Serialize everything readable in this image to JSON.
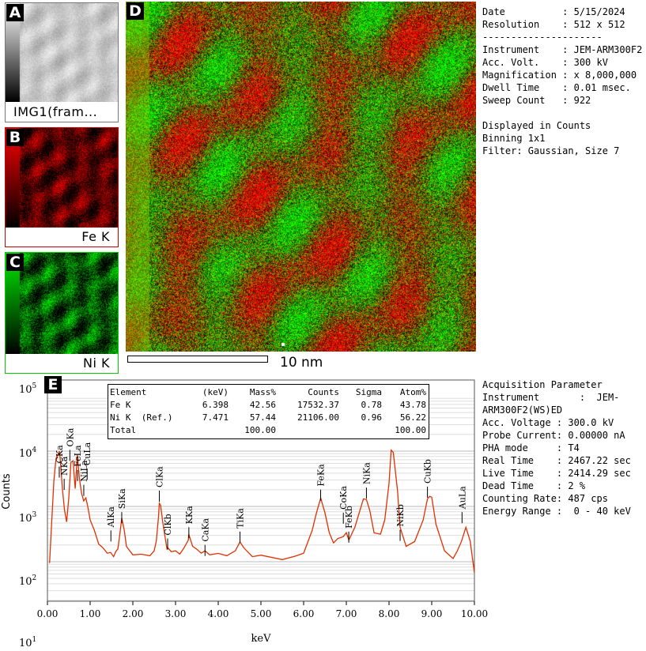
{
  "panels": {
    "A": {
      "letter": "A",
      "caption": "IMG1(fram..."
    },
    "B": {
      "letter": "B",
      "caption": "Fe K"
    },
    "C": {
      "letter": "C",
      "caption": "Ni K"
    },
    "D": {
      "letter": "D",
      "scalebar_label": "10 nm"
    },
    "E": {
      "letter": "E"
    }
  },
  "colors": {
    "fe": "#ff0000",
    "ni": "#00dd00",
    "caption_border_b": "#cc0000",
    "caption_border_c": "#00cc00",
    "spectrum": "#e03000"
  },
  "info_top": [
    "Date          : 5/15/2024",
    "Resolution    : 512 x 512",
    "---------------------",
    "Instrument    : JEM-ARM300F2",
    "Acc. Volt.    : 300 kV",
    "Magnification : x 8,000,000",
    "Dwell Time    : 0.01 msec.",
    "Sweep Count   : 922",
    "",
    "Displayed in Counts",
    "Binning 1x1",
    "Filter: Gaussian, Size 7"
  ],
  "info_bottom": [
    "Acquisition Parameter",
    "Instrument       :  JEM-",
    "ARM300F2(WS)ED",
    "Acc. Voltage : 300.0 kV",
    "Probe Current: 0.00000 nA",
    "PHA mode     : T4",
    "Real Time    : 2467.22 sec",
    "Live Time    : 2414.29 sec",
    "Dead Time    : 2 %",
    "Counting Rate: 487 cps",
    "Energy Range :  0 - 40 keV"
  ],
  "table": {
    "headers": [
      "Element",
      "(keV)",
      "Mass%",
      "Counts",
      "Sigma",
      "Atom%"
    ],
    "rows": [
      [
        "Fe K",
        "6.398",
        "42.56",
        "17532.37",
        "0.78",
        "43.78"
      ],
      [
        "Ni K  (Ref.)",
        "7.471",
        "57.44",
        "21106.00",
        "0.96",
        "56.22"
      ],
      [
        "Total",
        "",
        "100.00",
        "",
        "",
        "100.00"
      ]
    ]
  },
  "chart_data": {
    "type": "line",
    "xlabel": "keV",
    "ylabel": "Counts",
    "xlim": [
      0,
      10
    ],
    "ylim": [
      10,
      100000
    ],
    "yscale": "log",
    "xticks": [
      "0.00",
      "1.00",
      "2.00",
      "3.00",
      "4.00",
      "5.00",
      "6.00",
      "7.00",
      "8.00",
      "9.00",
      "10.00"
    ],
    "ytick_bases": [
      "10",
      "10",
      "10",
      "10",
      "10"
    ],
    "ytick_exps": [
      "5",
      "4",
      "3",
      "2",
      "1"
    ],
    "series": [
      {
        "x": [
          0.05,
          0.1,
          0.15,
          0.2,
          0.25,
          0.28,
          0.3,
          0.35,
          0.4,
          0.45,
          0.5,
          0.55,
          0.6,
          0.65,
          0.7,
          0.75,
          0.8,
          0.85,
          0.9,
          0.95,
          1.0,
          1.1,
          1.2,
          1.3,
          1.4,
          1.48,
          1.55,
          1.6,
          1.65,
          1.7,
          1.74,
          1.8,
          1.85,
          1.9,
          2.0,
          2.2,
          2.4,
          2.5,
          2.55,
          2.6,
          2.62,
          2.65,
          2.7,
          2.75,
          2.8,
          2.82,
          2.9,
          3.0,
          3.1,
          3.2,
          3.3,
          3.31,
          3.4,
          3.5,
          3.6,
          3.69,
          3.8,
          4.0,
          4.2,
          4.4,
          4.51,
          4.6,
          4.8,
          5.0,
          5.5,
          5.8,
          6.0,
          6.2,
          6.3,
          6.4,
          6.5,
          6.6,
          6.7,
          6.8,
          6.93,
          7.0,
          7.06,
          7.2,
          7.3,
          7.4,
          7.47,
          7.55,
          7.65,
          7.8,
          7.9,
          8.0,
          8.05,
          8.1,
          8.2,
          8.26,
          8.4,
          8.6,
          8.8,
          8.9,
          8.95,
          9.0,
          9.1,
          9.3,
          9.5,
          9.6,
          9.7,
          9.8,
          9.9,
          10.0
        ],
        "y": [
          100,
          500,
          3000,
          7000,
          9000,
          9500,
          7500,
          2000,
          900,
          500,
          1500,
          6000,
          7000,
          2000,
          9000,
          3000,
          1800,
          1200,
          1500,
          900,
          600,
          350,
          220,
          170,
          150,
          140,
          130,
          145,
          180,
          320,
          650,
          350,
          200,
          160,
          140,
          130,
          135,
          150,
          250,
          600,
          1200,
          1000,
          550,
          280,
          180,
          170,
          160,
          150,
          145,
          170,
          260,
          300,
          200,
          160,
          150,
          150,
          140,
          135,
          135,
          150,
          240,
          170,
          130,
          125,
          115,
          120,
          150,
          350,
          800,
          1350,
          800,
          320,
          230,
          250,
          300,
          320,
          260,
          400,
          800,
          1300,
          1400,
          800,
          350,
          300,
          600,
          2500,
          11000,
          9000,
          2000,
          400,
          200,
          220,
          600,
          1300,
          1600,
          1400,
          500,
          150,
          120,
          150,
          250,
          400,
          250,
          60
        ]
      }
    ],
    "peaks": [
      {
        "label": "CKa",
        "x": 0.277,
        "y": 6000
      },
      {
        "label": "OKa",
        "x": 0.525,
        "y": 12000
      },
      {
        "label": "NKa",
        "x": 0.392,
        "y": 3600
      },
      {
        "label": "FeLa",
        "x": 0.705,
        "y": 5200
      },
      {
        "label": "CuLa",
        "x": 0.93,
        "y": 5500
      },
      {
        "label": "NiLa",
        "x": 0.851,
        "y": 2800
      },
      {
        "label": "AlKa",
        "x": 1.486,
        "y": 420
      },
      {
        "label": "SiKa",
        "x": 1.74,
        "y": 900
      },
      {
        "label": "ClKa",
        "x": 2.621,
        "y": 2200
      },
      {
        "label": "ClKb",
        "x": 2.815,
        "y": 300
      },
      {
        "label": "KKa",
        "x": 3.312,
        "y": 480
      },
      {
        "label": "CaKa",
        "x": 3.69,
        "y": 230
      },
      {
        "label": "TiKa",
        "x": 4.51,
        "y": 400
      },
      {
        "label": "FeKa",
        "x": 6.398,
        "y": 2300
      },
      {
        "label": "CoKa",
        "x": 6.93,
        "y": 880
      },
      {
        "label": "FeKb",
        "x": 7.057,
        "y": 400
      },
      {
        "label": "NiKa",
        "x": 7.471,
        "y": 2500
      },
      {
        "label": "NiKb",
        "x": 8.26,
        "y": 430
      },
      {
        "label": "CuKb",
        "x": 8.9,
        "y": 2600
      },
      {
        "label": "AuLa",
        "x": 9.71,
        "y": 900
      }
    ]
  }
}
